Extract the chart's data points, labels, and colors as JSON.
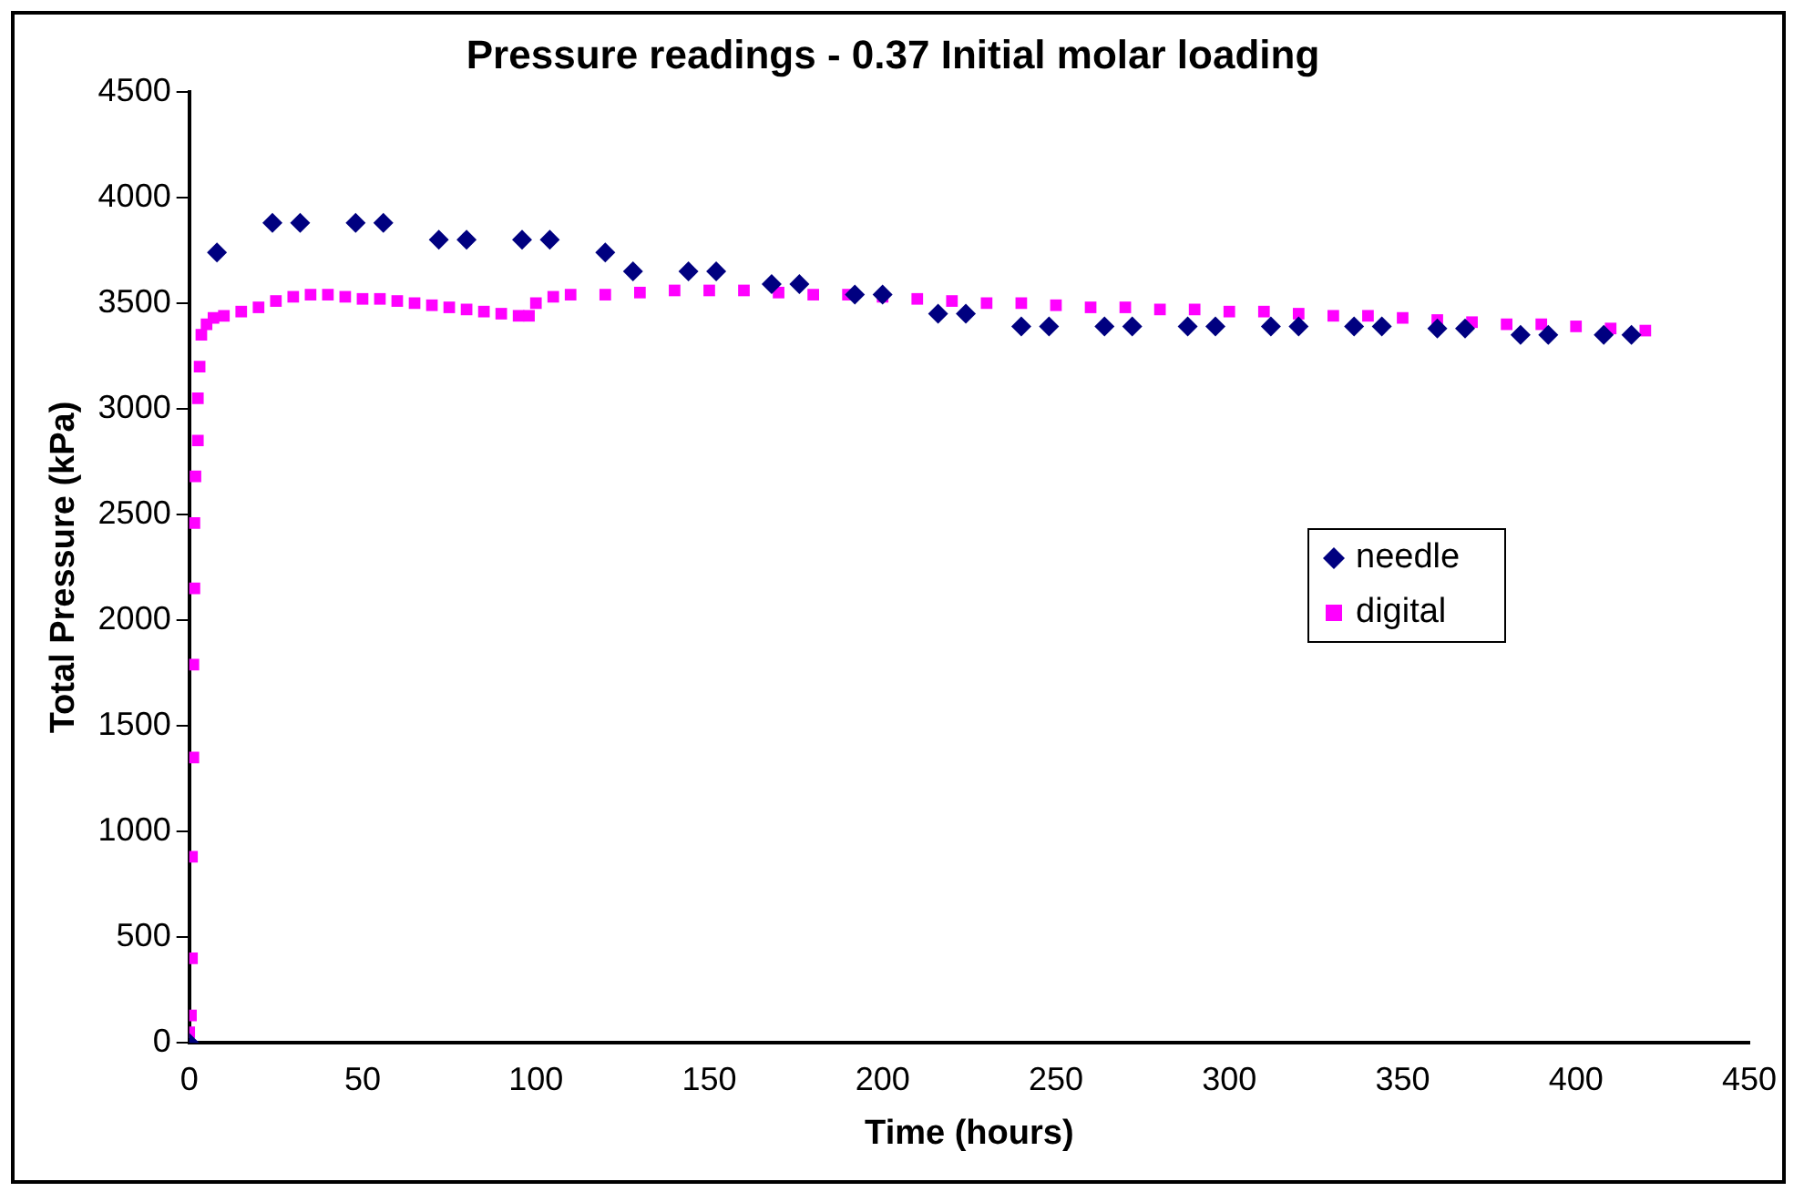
{
  "chart_data": {
    "type": "scatter",
    "title": "Pressure readings - 0.37 Initial molar loading",
    "xlabel": "Time (hours)",
    "ylabel": "Total Pressure (kPa)",
    "xlim": [
      0,
      450
    ],
    "xticks": [
      0,
      50,
      100,
      150,
      200,
      250,
      300,
      350,
      400,
      450
    ],
    "ylim": [
      0,
      4500
    ],
    "yticks": [
      0,
      500,
      1000,
      1500,
      2000,
      2500,
      3000,
      3500,
      4000,
      4500
    ],
    "grid": false,
    "legend": "right",
    "series": [
      {
        "name": "needle",
        "color": "#000080",
        "marker": "diamond",
        "x": [
          0,
          8,
          24,
          32,
          48,
          56,
          72,
          80,
          96,
          104,
          120,
          128,
          144,
          152,
          168,
          176,
          192,
          200,
          216,
          224,
          240,
          248,
          264,
          272,
          288,
          296,
          312,
          320,
          336,
          344,
          360,
          368,
          384,
          392,
          408,
          416
        ],
        "values": [
          0,
          3740,
          3880,
          3880,
          3880,
          3880,
          3800,
          3800,
          3800,
          3800,
          3740,
          3650,
          3650,
          3650,
          3590,
          3590,
          3540,
          3540,
          3450,
          3450,
          3390,
          3390,
          3390,
          3390,
          3390,
          3390,
          3390,
          3390,
          3390,
          3390,
          3380,
          3380,
          3350,
          3350,
          3350,
          3350
        ]
      },
      {
        "name": "digital",
        "color": "#ff00ff",
        "marker": "square",
        "x": [
          0,
          0.5,
          0.8,
          0.8,
          1.2,
          1.2,
          1.5,
          1.5,
          1.8,
          2.5,
          2.5,
          3,
          3.5,
          5,
          7,
          10,
          15,
          20,
          25,
          30,
          35,
          40,
          45,
          50,
          55,
          60,
          65,
          70,
          75,
          80,
          85,
          90,
          95,
          98,
          100,
          105,
          110,
          120,
          130,
          140,
          150,
          160,
          170,
          180,
          190,
          200,
          210,
          220,
          230,
          240,
          250,
          260,
          270,
          280,
          290,
          300,
          310,
          320,
          330,
          340,
          350,
          360,
          370,
          380,
          390,
          400,
          410,
          420
        ],
        "values": [
          50,
          130,
          400,
          880,
          1350,
          1790,
          2150,
          2460,
          2680,
          2850,
          3050,
          3200,
          3350,
          3400,
          3430,
          3440,
          3460,
          3480,
          3510,
          3530,
          3540,
          3540,
          3530,
          3520,
          3520,
          3510,
          3500,
          3490,
          3480,
          3470,
          3460,
          3450,
          3440,
          3440,
          3500,
          3530,
          3540,
          3540,
          3550,
          3560,
          3560,
          3560,
          3550,
          3540,
          3540,
          3530,
          3520,
          3510,
          3500,
          3500,
          3490,
          3480,
          3480,
          3470,
          3470,
          3460,
          3460,
          3450,
          3440,
          3440,
          3430,
          3420,
          3410,
          3400,
          3400,
          3390,
          3380,
          3370
        ]
      }
    ]
  }
}
